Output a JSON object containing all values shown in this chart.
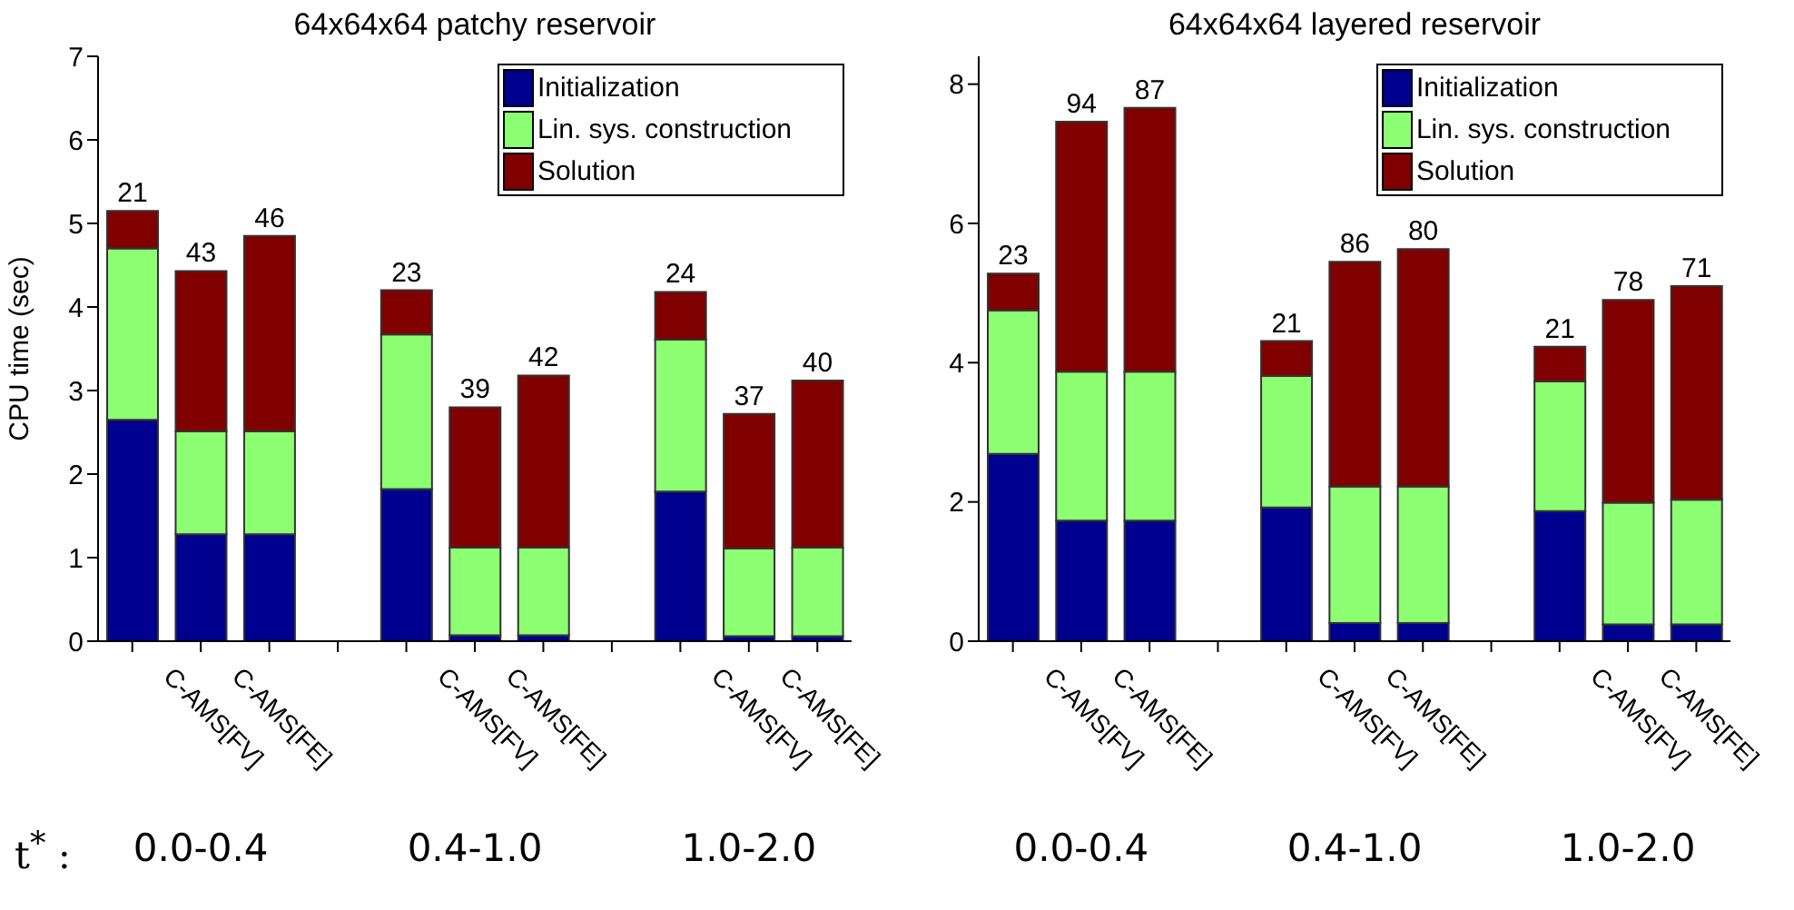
{
  "chart_data": [
    {
      "type": "bar",
      "stacked": true,
      "title": "64x64x64 patchy reservoir",
      "ylabel": "CPU time (sec)",
      "categories": [
        null,
        "C-AMS[FV]",
        "C-AMS[FE]",
        null,
        null,
        "C-AMS[FV]",
        "C-AMS[FE]",
        null,
        null,
        "C-AMS[FV]",
        "C-AMS[FE]"
      ],
      "series": [
        {
          "name": "Initialization",
          "color": "#00008f",
          "values": [
            2.65,
            1.28,
            1.28,
            null,
            1.82,
            0.07,
            0.07,
            null,
            1.79,
            0.06,
            0.06
          ]
        },
        {
          "name": "Lin. sys. construction",
          "color": "#8cff73",
          "values": [
            2.05,
            1.23,
            1.23,
            null,
            1.85,
            1.05,
            1.05,
            null,
            1.82,
            1.05,
            1.06
          ]
        },
        {
          "name": "Solution",
          "color": "#800000",
          "values": [
            0.45,
            1.92,
            2.34,
            null,
            0.53,
            1.68,
            2.06,
            null,
            0.57,
            1.61,
            2.0
          ]
        }
      ],
      "ylim": [
        0,
        7
      ],
      "yticks": [
        0,
        1,
        2,
        3,
        4,
        5,
        6,
        7
      ],
      "legend": "top right",
      "annotations": [
        "21",
        "43",
        "46",
        "23",
        "39",
        "42",
        "24",
        "37",
        "40",
        "t$^{*}$ :",
        "0.0-0.4",
        "0.4-1.0",
        "1.0-2.0"
      ]
    },
    {
      "type": "bar",
      "stacked": true,
      "title": "64x64x64 layered reservoir",
      "categories": [
        null,
        "C-AMS[FV]",
        "C-AMS[FE]",
        null,
        null,
        "C-AMS[FV]",
        "C-AMS[FE]",
        null,
        null,
        "C-AMS[FV]",
        "C-AMS[FE]"
      ],
      "series": [
        {
          "name": "Initialization",
          "color": "#00008f",
          "values": [
            2.69,
            1.73,
            1.73,
            null,
            1.92,
            0.26,
            0.26,
            null,
            1.87,
            0.24,
            0.24
          ]
        },
        {
          "name": "Lin. sys. construction",
          "color": "#8cff73",
          "values": [
            2.06,
            2.14,
            2.14,
            null,
            1.89,
            1.96,
            1.96,
            null,
            1.86,
            1.75,
            1.79
          ]
        },
        {
          "name": "Solution",
          "color": "#800000",
          "values": [
            0.53,
            3.59,
            3.79,
            null,
            0.5,
            3.23,
            3.41,
            null,
            0.5,
            2.91,
            3.07
          ]
        }
      ],
      "ylim": [
        0,
        8.4
      ],
      "yticks": [
        0,
        2,
        4,
        6,
        8
      ],
      "legend": "top right",
      "annotations": [
        "23",
        "94",
        "87",
        "21",
        "86",
        "80",
        "21",
        "78",
        "71",
        "0.0-0.4",
        "0.4-1.0",
        "1.0-2.0"
      ]
    }
  ]
}
